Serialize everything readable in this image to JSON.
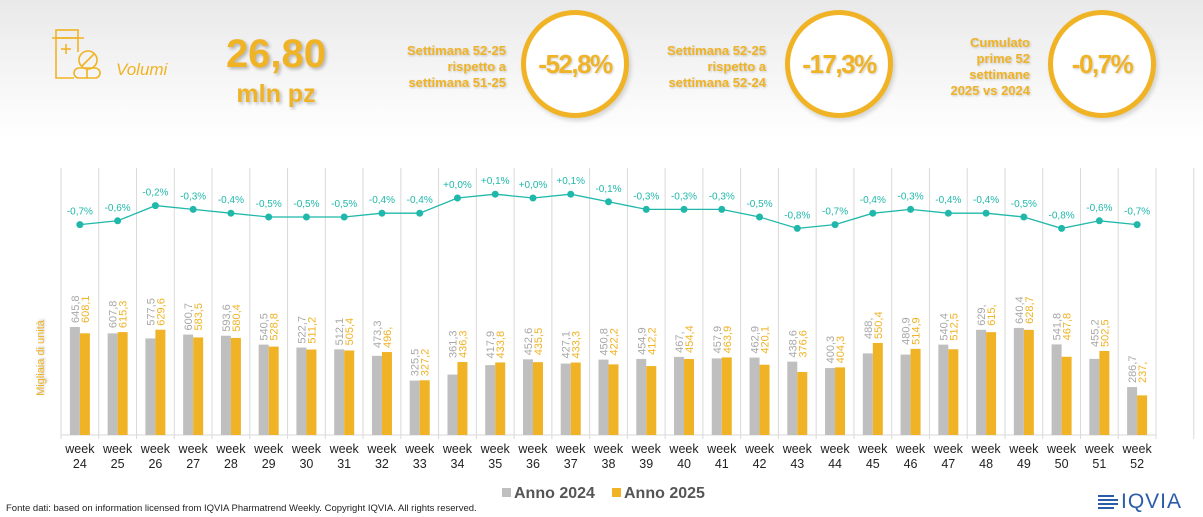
{
  "header": {
    "kpi_label": "Volumi",
    "kpi_value": "26,80",
    "kpi_unit": "mln pz",
    "comparisons": [
      {
        "lines": [
          "Settimana 52-25",
          "rispetto a",
          "settimana 51-25"
        ],
        "value": "-52,8%"
      },
      {
        "lines": [
          "Settimana 52-25",
          "rispetto a",
          "settimana 52-24"
        ],
        "value": "-17,3%"
      },
      {
        "lines": [
          "Cumulato",
          "prime 52",
          "settimane",
          "2025 vs 2024"
        ],
        "value": "-0,7%"
      }
    ]
  },
  "colors": {
    "accent": "#f0b325",
    "series_2024": "#bfbfbf",
    "series_2025": "#f0b325",
    "line": "#1fb8aa"
  },
  "chart_data": {
    "type": "bar",
    "title": "",
    "xlabel": "",
    "ylabel": "Migliaia di unità",
    "categories": [
      "week 24",
      "week 25",
      "week 26",
      "week 27",
      "week 28",
      "week 29",
      "week 30",
      "week 31",
      "week 32",
      "week 33",
      "week 34",
      "week 35",
      "week 36",
      "week 37",
      "week 38",
      "week 39",
      "week 40",
      "week 41",
      "week 42",
      "week 43",
      "week 44",
      "week 45",
      "week 46",
      "week 47",
      "week 48",
      "week 49",
      "week 50",
      "week 51",
      "week 52"
    ],
    "series": [
      {
        "name": "Anno 2024",
        "values": [
          645.8,
          607.8,
          577.5,
          600.7,
          593.6,
          540.5,
          522.7,
          512.1,
          473.3,
          325.5,
          361.3,
          417.9,
          452.6,
          427.1,
          450.8,
          454.9,
          467.0,
          457.9,
          462.9,
          438.6,
          400.3,
          488.0,
          480.9,
          540.4,
          629.0,
          640.4,
          541.8,
          455.2,
          286.7
        ],
        "labels": [
          "645,8",
          "607,8",
          "577,5",
          "600,7",
          "593,6",
          "540,5",
          "522,7",
          "512,1",
          "473,3",
          "325,5",
          "361,3",
          "417,9",
          "452,6",
          "427,1",
          "450,8",
          "454,9",
          "467,",
          "457,9",
          "462,9",
          "438,6",
          "400,3",
          "488,",
          "480,9",
          "540,4",
          "629,",
          "640,4",
          "541,8",
          "455,2",
          "286,7"
        ]
      },
      {
        "name": "Anno 2025",
        "values": [
          608.1,
          615.3,
          629.6,
          583.5,
          580.4,
          528.8,
          511.2,
          505.4,
          496.0,
          327.2,
          436.3,
          433.8,
          435.5,
          433.3,
          422.2,
          412.2,
          454.4,
          463.9,
          420.1,
          376.6,
          404.3,
          550.4,
          514.9,
          512.5,
          615.0,
          628.7,
          467.8,
          502.5,
          237.0
        ],
        "labels": [
          "608,1",
          "615,3",
          "629,6",
          "583,5",
          "580,4",
          "528,8",
          "511,2",
          "505,4",
          "496,",
          "327,2",
          "436,3",
          "433,8",
          "435,5",
          "433,3",
          "422,2",
          "412,2",
          "454,4",
          "463,9",
          "420,1",
          "376,6",
          "404,3",
          "550,4",
          "514,9",
          "512,5",
          "615,",
          "628,7",
          "467,8",
          "502,5",
          "237,"
        ]
      }
    ],
    "line_series": {
      "name": "Cumulato 2025 vs 2024",
      "values": [
        -0.7,
        -0.6,
        -0.2,
        -0.3,
        -0.4,
        -0.5,
        -0.5,
        -0.5,
        -0.4,
        -0.4,
        0.0,
        0.1,
        0.0,
        0.1,
        -0.1,
        -0.3,
        -0.3,
        -0.3,
        -0.5,
        -0.8,
        -0.7,
        -0.4,
        -0.3,
        -0.4,
        -0.4,
        -0.5,
        -0.8,
        -0.6,
        -0.7
      ],
      "labels": [
        "-0,7%",
        "-0,6%",
        "-0,2%",
        "-0,3%",
        "-0,4%",
        "-0,5%",
        "-0,5%",
        "-0,5%",
        "-0,4%",
        "-0,4%",
        "+0,0%",
        "+0,1%",
        "+0,0%",
        "+0,1%",
        "-0,1%",
        "-0,3%",
        "-0,3%",
        "-0,3%",
        "-0,5%",
        "-0,8%",
        "-0,7%",
        "-0,4%",
        "-0,3%",
        "-0,4%",
        "-0,4%",
        "-0,5%",
        "-0,8%",
        "-0,6%",
        "-0,7%"
      ]
    },
    "ylim": [
      0,
      1600
    ],
    "grid": "vertical",
    "legend": "bottom-center"
  },
  "legend": {
    "item_2024": "Anno 2024",
    "item_2025": "Anno 2025"
  },
  "footer": {
    "source": "Fonte dati: based on information licensed from IQVIA Pharmatrend Weekly. Copyright IQVIA. All rights reserved."
  },
  "logo": {
    "text": "IQVIA"
  }
}
